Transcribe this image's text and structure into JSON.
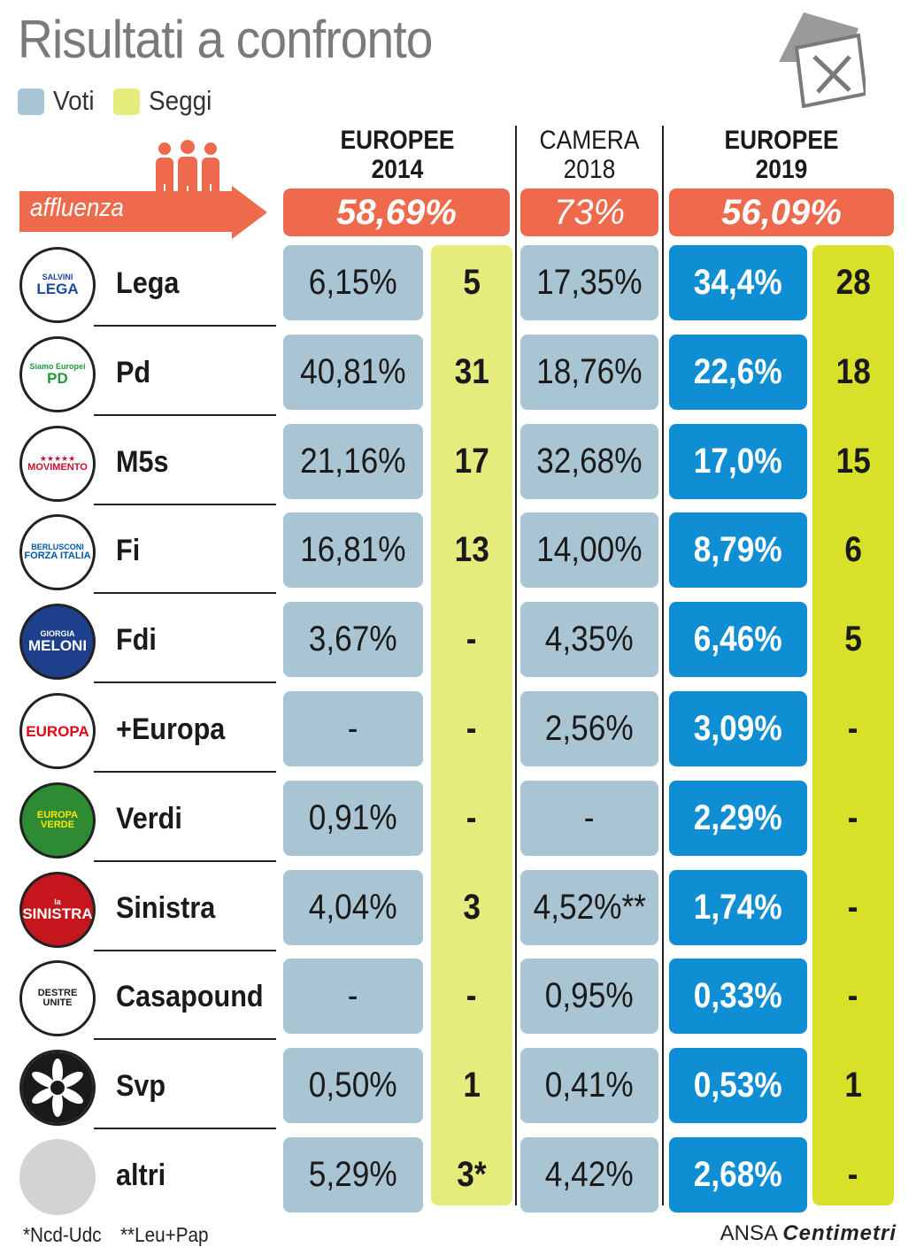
{
  "title": "Risultati a confronto",
  "legend": {
    "votes": "Voti",
    "seats": "Seggi"
  },
  "columns": {
    "eu2014": {
      "line1": "EUROPEE",
      "line2": "2014"
    },
    "cam2018": {
      "line1": "CAMERA",
      "line2": "2018"
    },
    "eu2019": {
      "line1": "EUROPEE",
      "line2": "2019"
    }
  },
  "turnout": {
    "label": "affluenza",
    "eu2014": "58,69%",
    "cam2018": "73%",
    "eu2019": "56,09%"
  },
  "parties": [
    {
      "name": "Lega",
      "logo_text": "LEGA",
      "logo_sub": "SALVINI",
      "v14": "6,15%",
      "s14": "5",
      "v18": "17,35%",
      "v19": "34,4%",
      "s19": "28"
    },
    {
      "name": "Pd",
      "logo_text": "PD",
      "logo_sub": "Siamo Europei",
      "v14": "40,81%",
      "s14": "31",
      "v18": "18,76%",
      "v19": "22,6%",
      "s19": "18"
    },
    {
      "name": "M5s",
      "logo_text": "MOVIMENTO",
      "logo_sub": "★★★★★",
      "v14": "21,16%",
      "s14": "17",
      "v18": "32,68%",
      "v19": "17,0%",
      "s19": "15"
    },
    {
      "name": "Fi",
      "logo_text": "FORZA ITALIA",
      "logo_sub": "BERLUSCONI",
      "v14": "16,81%",
      "s14": "13",
      "v18": "14,00%",
      "v19": "8,79%",
      "s19": "6"
    },
    {
      "name": "Fdi",
      "logo_text": "MELONI",
      "logo_sub": "GIORGIA",
      "v14": "3,67%",
      "s14": "-",
      "v18": "4,35%",
      "v19": "6,46%",
      "s19": "5"
    },
    {
      "name": "+Europa",
      "logo_text": "EUROPA",
      "logo_sub": "",
      "v14": "-",
      "s14": "-",
      "v18": "2,56%",
      "v19": "3,09%",
      "s19": "-"
    },
    {
      "name": "Verdi",
      "logo_text": "EUROPA VERDE",
      "logo_sub": "",
      "v14": "0,91%",
      "s14": "-",
      "v18": "-",
      "v19": "2,29%",
      "s19": "-"
    },
    {
      "name": "Sinistra",
      "logo_text": "SINISTRA",
      "logo_sub": "la",
      "v14": "4,04%",
      "s14": "3",
      "v18": "4,52%**",
      "v19": "1,74%",
      "s19": "-"
    },
    {
      "name": "Casapound",
      "logo_text": "DESTRE UNITE",
      "logo_sub": "",
      "v14": "-",
      "s14": "-",
      "v18": "0,95%",
      "v19": "0,33%",
      "s19": "-"
    },
    {
      "name": "Svp",
      "logo_text": "",
      "logo_sub": "",
      "v14": "0,50%",
      "s14": "1",
      "v18": "0,41%",
      "v19": "0,53%",
      "s19": "1"
    },
    {
      "name": "altri",
      "logo_text": "",
      "logo_sub": "",
      "v14": "5,29%",
      "s14": "3*",
      "v18": "4,42%",
      "v19": "2,68%",
      "s19": "-"
    }
  ],
  "footnotes": {
    "one": "*Ncd-Udc",
    "two": "**Leu+Pap"
  },
  "credit": {
    "agency": "ANSA",
    "brand": "Centimetri"
  },
  "colors": {
    "votes": "#a9c5d3",
    "seats": "#e6eb7e",
    "turnout": "#ef6a4d",
    "highlight": "#0f8ed4"
  }
}
